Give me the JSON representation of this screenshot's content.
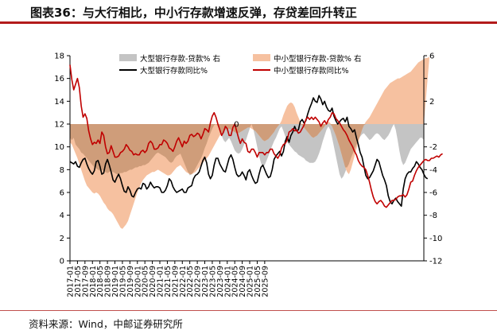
{
  "header": {
    "title": "图表36：与大行相比，中小行存款增速反弹，存贷差回升转正"
  },
  "footer": {
    "source": "资料来源：Wind，中邮证券研究所"
  },
  "colors": {
    "large_gap": "#c4c4c4",
    "small_gap": "#f6c1a0",
    "overlap": "#cf9d7a",
    "large_line": "#000000",
    "small_line": "#c00000",
    "axis": "#000000",
    "title_rule": "#b31b1b"
  },
  "chart_data": {
    "type": "area+line",
    "title": "与大行相比，中小行存款增速反弹，存贷差回升转正",
    "legend": [
      "大型银行存款-贷款% 右",
      "中小型银行存款-贷款% 右",
      "大型银行存款同比%",
      "中小型银行存款同比%"
    ],
    "annotation": {
      "text": "0",
      "x": "2024-05",
      "y_right": 0
    },
    "x_ticks": [
      "2017-01",
      "2017-05",
      "2017-09",
      "2018-01",
      "2018-05",
      "2018-09",
      "2019-01",
      "2019-05",
      "2019-09",
      "2020-01",
      "2020-05",
      "2020-09",
      "2021-01",
      "2021-05",
      "2021-09",
      "2022-01",
      "2022-05",
      "2022-09",
      "2023-01",
      "2023-05",
      "2023-09",
      "2024-01",
      "2024-05",
      "2024-09",
      "2025-01",
      "2025-05",
      "2025-09"
    ],
    "y_left": {
      "ticks": [
        0,
        2,
        4,
        6,
        8,
        10,
        12,
        14,
        16,
        18
      ],
      "ylim": [
        0,
        18
      ]
    },
    "y_right": {
      "ticks": [
        6,
        2,
        -2,
        -4,
        -6,
        -8,
        -10,
        -12
      ],
      "ylim": [
        -12,
        6
      ]
    },
    "series": [
      {
        "name": "大型银行存款-贷款% 右",
        "axis": "right",
        "style": "area",
        "values": [
          -1.2,
          -1.4,
          -1.2,
          -1.8,
          -2.0,
          -2.2,
          -2.5,
          -2.6,
          -2.8,
          -3.0,
          -3.2,
          -3.4,
          -3.6,
          -3.8,
          -3.9,
          -4.0,
          -4.1,
          -4.0,
          -4.1,
          -4.2,
          -4.3,
          -4.2,
          -4.1,
          -4.2,
          -4.3,
          -4.4,
          -4.4,
          -4.3,
          -4.3,
          -4.2,
          -4.2,
          -4.1,
          -4.0,
          -4.0,
          -3.9,
          -3.8,
          -3.8,
          -3.7,
          -3.7,
          -3.6,
          -3.6,
          -3.5,
          -3.4,
          -3.2,
          -3.0,
          -2.8,
          -2.6,
          -2.5,
          -2.6,
          -2.7,
          -2.8,
          -2.9,
          -3.1,
          -3.3,
          -3.4,
          -3.3,
          -3.0,
          -2.8,
          -2.7,
          -2.6,
          -3.0,
          -3.4,
          -3.8,
          -4.2,
          -4.5,
          -4.4,
          -4.2,
          -3.9,
          -3.6,
          -3.3,
          -3.0,
          -2.6,
          -2.1,
          -1.7,
          -1.2,
          -0.8,
          -0.4,
          -0.1,
          0.0,
          -0.2,
          -0.6,
          -1.0,
          -1.4,
          -1.6,
          -1.4,
          -1.2,
          -1.5,
          -1.9,
          -2.3,
          -2.5,
          -2.6,
          -2.5,
          -2.2,
          -1.8,
          -1.4,
          -0.9,
          -0.4,
          0.0,
          -0.5,
          -1.2,
          -2.0,
          -2.8,
          -3.4,
          -3.8,
          -3.6,
          -3.2,
          -2.8,
          -2.3,
          -1.9,
          -1.5,
          -1.2,
          -0.8,
          -0.4,
          -0.2,
          -0.6,
          -1.1,
          -1.6,
          -1.8,
          -2.0,
          -2.2,
          -2.4,
          -2.5,
          -2.7,
          -2.8,
          -2.9,
          -3.0,
          -3.2,
          -3.3,
          -3.4,
          -3.4,
          -3.4,
          -3.3,
          -3.0,
          -2.6,
          -2.1,
          -1.5,
          -1.0,
          -0.5,
          -0.2,
          -0.5,
          -1.2,
          -2.0,
          -2.8,
          -3.6,
          -4.4,
          -4.8,
          -4.6,
          -4.2,
          -3.8,
          -3.5,
          -3.0,
          -2.6,
          -2.2,
          -1.8,
          -1.4,
          -1.1,
          -0.9,
          -0.8,
          -1.0,
          -1.2,
          -1.4,
          -1.3,
          -1.1,
          -0.9,
          -0.8,
          -0.9,
          -1.1,
          -1.3,
          -1.4,
          -1.2,
          -1.0,
          -0.7,
          -0.3,
          0.0,
          -0.5,
          -1.4,
          -2.4,
          -3.2,
          -3.6,
          -3.4,
          -3.0,
          -2.6,
          -2.2,
          -2.0,
          -1.8,
          -1.6,
          -1.4,
          -1.2,
          -1.2,
          -1.4
        ]
      },
      {
        "name": "中小型银行存款-贷款% 右",
        "axis": "right",
        "style": "area",
        "values": [
          -1.6,
          -1.8,
          -2.2,
          -2.6,
          -3.0,
          -3.5,
          -4.0,
          -4.5,
          -5.0,
          -5.4,
          -5.6,
          -5.8,
          -6.0,
          -6.1,
          -6.0,
          -6.1,
          -6.3,
          -6.6,
          -6.9,
          -7.1,
          -7.4,
          -7.6,
          -7.7,
          -7.9,
          -8.2,
          -8.5,
          -8.8,
          -9.1,
          -9.2,
          -9.0,
          -8.8,
          -8.5,
          -8.0,
          -7.5,
          -7.0,
          -6.5,
          -6.0,
          -5.6,
          -5.2,
          -4.9,
          -4.7,
          -4.5,
          -4.4,
          -4.3,
          -4.2,
          -4.2,
          -4.1,
          -4.0,
          -4.1,
          -4.2,
          -4.3,
          -4.4,
          -4.5,
          -4.5,
          -4.4,
          -4.2,
          -4.0,
          -3.8,
          -3.7,
          -3.6,
          -3.8,
          -4.0,
          -4.2,
          -4.3,
          -4.4,
          -4.4,
          -4.3,
          -4.2,
          -4.0,
          -3.8,
          -3.6,
          -3.4,
          -3.2,
          -3.0,
          -2.8,
          -2.5,
          -2.2,
          -1.9,
          -1.6,
          -1.3,
          -1.0,
          -0.8,
          -0.6,
          -0.5,
          -0.4,
          -0.4,
          -0.5,
          -0.6,
          -0.7,
          -0.8,
          -0.8,
          -0.7,
          -0.6,
          -0.5,
          -0.4,
          -0.3,
          -0.3,
          -0.4,
          -0.5,
          -0.6,
          -0.8,
          -1.0,
          -1.2,
          -1.4,
          -1.5,
          -1.4,
          -1.3,
          -1.1,
          -0.9,
          -0.7,
          -0.4,
          -0.2,
          0.0,
          0.3,
          0.8,
          1.2,
          1.6,
          1.8,
          1.9,
          1.8,
          1.5,
          1.0,
          0.6,
          0.2,
          -0.1,
          -0.3,
          -0.5,
          -0.7,
          -0.9,
          -1.1,
          -1.2,
          -1.1,
          -1.0,
          -0.8,
          -0.6,
          -0.4,
          -0.2,
          0.0,
          0.2,
          0.1,
          -0.2,
          -0.6,
          -1.0,
          -1.5,
          -2.0,
          -2.6,
          -3.2,
          -3.8,
          -4.2,
          -4.4,
          -4.0,
          -3.4,
          -2.8,
          -2.2,
          -1.6,
          -1.0,
          -0.5,
          -0.1,
          0.2,
          0.4,
          0.6,
          0.9,
          1.2,
          1.5,
          1.8,
          2.1,
          2.4,
          2.7,
          3.0,
          3.2,
          3.4,
          3.6,
          3.7,
          3.8,
          3.9,
          4.0,
          4.0,
          4.1,
          4.2,
          4.3,
          4.4,
          4.5,
          4.6,
          4.8,
          5.0,
          5.2,
          5.4,
          5.5,
          5.6,
          5.7,
          5.8,
          5.8,
          5.9
        ]
      },
      {
        "name": "大型银行存款同比%",
        "axis": "left",
        "style": "line",
        "values": [
          8.7,
          8.6,
          8.5,
          8.7,
          8.3,
          8.2,
          8.6,
          8.9,
          9.0,
          8.5,
          8.1,
          7.8,
          7.6,
          7.9,
          8.7,
          8.8,
          8.3,
          7.6,
          7.7,
          8.5,
          8.9,
          8.4,
          7.8,
          7.1,
          6.9,
          7.3,
          7.6,
          7.2,
          6.6,
          6.1,
          6.0,
          6.5,
          6.2,
          5.7,
          5.6,
          6.0,
          6.3,
          6.4,
          6.3,
          6.8,
          6.7,
          6.3,
          6.5,
          6.9,
          6.6,
          6.4,
          6.5,
          6.5,
          6.4,
          6.0,
          6.0,
          6.2,
          6.6,
          7.2,
          7.0,
          6.5,
          6.2,
          6.0,
          6.1,
          6.2,
          6.3,
          6.0,
          6.0,
          6.4,
          6.5,
          6.6,
          7.2,
          7.5,
          7.6,
          7.8,
          8.3,
          8.8,
          9.1,
          8.6,
          7.6,
          7.2,
          7.5,
          8.4,
          9.0,
          9.0,
          8.5,
          8.2,
          7.9,
          7.8,
          8.4,
          9.0,
          9.3,
          8.9,
          8.2,
          7.6,
          7.4,
          7.5,
          7.8,
          7.5,
          7.1,
          7.8,
          8.0,
          7.5,
          7.1,
          6.8,
          6.9,
          7.6,
          8.2,
          8.4,
          8.0,
          7.6,
          7.3,
          7.4,
          8.0,
          8.9,
          9.2,
          9.4,
          9.6,
          9.2,
          9.6,
          10.5,
          10.9,
          10.4,
          11.0,
          11.3,
          11.8,
          11.4,
          11.5,
          12.2,
          12.4,
          12.1,
          12.3,
          12.9,
          13.4,
          13.8,
          14.3,
          14.0,
          13.9,
          14.5,
          14.2,
          13.7,
          14.0,
          13.5,
          13.2,
          13.1,
          13.4,
          12.7,
          12.3,
          12.0,
          12.2,
          12.4,
          12.5,
          12.2,
          12.6,
          11.8,
          11.6,
          11.3,
          11.5,
          10.8,
          10.2,
          9.5,
          9.1,
          8.3,
          7.5,
          7.2,
          7.3,
          7.6,
          7.9,
          8.4,
          8.9,
          8.7,
          8.1,
          7.5,
          7.1,
          6.6,
          5.7,
          5.2,
          5.0,
          5.3,
          5.5,
          5.2,
          5.0,
          4.8,
          6.3,
          7.2,
          7.6,
          7.8,
          7.8,
          8.1,
          8.3,
          8.7,
          8.5,
          8.2,
          8.0,
          7.6,
          7.3,
          7.2
        ]
      },
      {
        "name": "中小型银行存款同比%",
        "axis": "left",
        "style": "line",
        "values": [
          17.2,
          15.9,
          15.0,
          15.5,
          16.0,
          15.2,
          13.6,
          12.6,
          12.9,
          12.5,
          11.4,
          10.7,
          10.2,
          10.4,
          10.3,
          10.6,
          10.3,
          11.3,
          11.0,
          10.0,
          9.4,
          9.5,
          10.1,
          9.6,
          9.1,
          9.1,
          9.2,
          9.5,
          9.6,
          9.8,
          10.2,
          10.0,
          9.7,
          9.6,
          9.3,
          9.4,
          9.3,
          9.3,
          9.6,
          9.7,
          9.5,
          9.7,
          10.3,
          10.5,
          10.3,
          9.8,
          9.8,
          9.9,
          10.2,
          10.2,
          10.6,
          10.5,
          10.3,
          9.9,
          9.8,
          9.6,
          10.0,
          10.5,
          10.8,
          10.4,
          10.0,
          10.5,
          10.3,
          10.5,
          11.0,
          11.1,
          10.9,
          11.0,
          11.2,
          11.1,
          10.7,
          11.1,
          11.6,
          11.5,
          11.3,
          12.1,
          12.7,
          13.0,
          12.6,
          12.0,
          11.5,
          11.0,
          11.3,
          11.8,
          11.6,
          11.0,
          11.0,
          11.7,
          12.0,
          11.4,
          10.8,
          10.3,
          10.7,
          10.4,
          10.3,
          9.6,
          9.5,
          9.8,
          9.8,
          9.5,
          9.1,
          9.5,
          9.5,
          9.5,
          9.3,
          9.5,
          9.5,
          9.8,
          9.8,
          9.4,
          9.2,
          9.0,
          9.3,
          9.9,
          10.2,
          10.3,
          10.6,
          11.3,
          11.4,
          11.6,
          11.4,
          11.5,
          11.2,
          11.3,
          11.6,
          11.9,
          12.4,
          12.6,
          12.4,
          12.6,
          12.4,
          12.6,
          12.4,
          12.2,
          11.8,
          12.1,
          12.3,
          12.0,
          12.4,
          12.6,
          13.0,
          12.9,
          12.5,
          12.3,
          12.1,
          11.8,
          11.5,
          11.3,
          11.0,
          10.6,
          10.3,
          10.0,
          9.6,
          9.3,
          8.8,
          8.5,
          8.3,
          8.2,
          8.0,
          7.5,
          6.9,
          6.2,
          5.6,
          5.2,
          5.0,
          5.2,
          5.3,
          5.1,
          4.8,
          4.7,
          4.9,
          5.1,
          5.3,
          5.3,
          5.4,
          5.6,
          5.7,
          5.7,
          5.8,
          5.6,
          5.8,
          6.3,
          6.9,
          7.0,
          7.5,
          7.9,
          8.2,
          8.4,
          8.6,
          8.8,
          8.9,
          8.8,
          8.8,
          9.0,
          9.0,
          9.1,
          9.2,
          9.1,
          9.3,
          9.4
        ]
      }
    ]
  }
}
